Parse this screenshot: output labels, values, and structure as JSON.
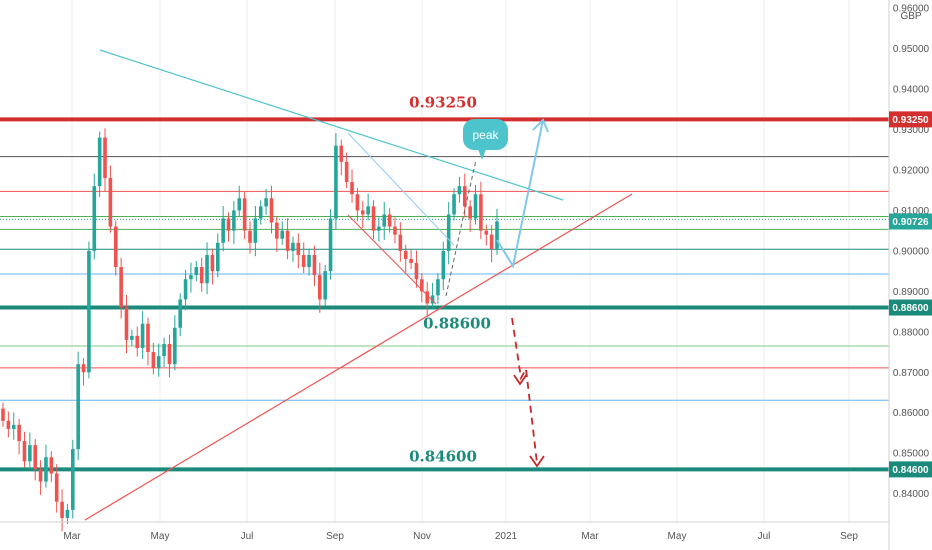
{
  "chart_data": {
    "type": "candlestick",
    "currency": "GBP",
    "y_range": [
      0.833,
      0.962
    ],
    "y_ticks": [
      "0.84000",
      "0.85000",
      "0.86000",
      "0.87000",
      "0.88000",
      "0.89000",
      "0.90000",
      "0.91000",
      "0.92000",
      "0.93000",
      "0.94000",
      "0.95000",
      "0.96000"
    ],
    "x_ticks": [
      "Mar",
      "May",
      "Jul",
      "Sep",
      "Nov",
      "2021",
      "Mar",
      "May",
      "Jul",
      "Sep"
    ],
    "price_tags": [
      {
        "value": 0.9325,
        "label": "0.93250",
        "color": "#d32f2f"
      },
      {
        "value": 0.90726,
        "label": "0.90726",
        "color": "#26a69a"
      },
      {
        "value": 0.886,
        "label": "0.88600",
        "color": "#1b8a7a"
      },
      {
        "value": 0.846,
        "label": "0.84600",
        "color": "#1b8a7a"
      }
    ],
    "level_annotations": [
      {
        "value": 0.9325,
        "text": "0.93250",
        "color": "#d32f2f"
      },
      {
        "value": 0.886,
        "text": "0.88600",
        "color": "#1b8a7a"
      },
      {
        "value": 0.846,
        "text": "0.84600",
        "color": "#1b8a7a"
      }
    ],
    "callout": "peak",
    "horizontal_levels": [
      {
        "value": 0.9325,
        "color": "#d32f2f",
        "width": 4
      },
      {
        "value": 0.9233,
        "color": "#555555",
        "width": 1
      },
      {
        "value": 0.9147,
        "color": "#ef5350",
        "width": 1
      },
      {
        "value": 0.9085,
        "color": "#4caf50",
        "width": 1
      },
      {
        "value": 0.9078,
        "color": "#26a69a",
        "width": 1,
        "dotted": true
      },
      {
        "value": 0.9053,
        "color": "#4caf50",
        "width": 1
      },
      {
        "value": 0.9004,
        "color": "#1b8a7a",
        "width": 1
      },
      {
        "value": 0.8943,
        "color": "#64b5f6",
        "width": 1
      },
      {
        "value": 0.886,
        "color": "#1b8a7a",
        "width": 4
      },
      {
        "value": 0.8765,
        "color": "#81c784",
        "width": 1
      },
      {
        "value": 0.8711,
        "color": "#ef5350",
        "width": 1
      },
      {
        "value": 0.8631,
        "color": "#64b5f6",
        "width": 1
      },
      {
        "value": 0.846,
        "color": "#1b8a7a",
        "width": 4
      }
    ],
    "candles_close": [
      0.858,
      0.856,
      0.857,
      0.853,
      0.848,
      0.852,
      0.846,
      0.843,
      0.849,
      0.845,
      0.838,
      0.834,
      0.836,
      0.851,
      0.872,
      0.87,
      0.9,
      0.916,
      0.928,
      0.918,
      0.906,
      0.896,
      0.886,
      0.878,
      0.879,
      0.876,
      0.882,
      0.875,
      0.871,
      0.874,
      0.877,
      0.872,
      0.881,
      0.888,
      0.893,
      0.894,
      0.896,
      0.892,
      0.899,
      0.895,
      0.902,
      0.908,
      0.905,
      0.91,
      0.913,
      0.905,
      0.902,
      0.908,
      0.911,
      0.913,
      0.907,
      0.903,
      0.905,
      0.9,
      0.902,
      0.899,
      0.896,
      0.899,
      0.894,
      0.888,
      0.895,
      0.908,
      0.926,
      0.922,
      0.917,
      0.914,
      0.91,
      0.909,
      0.911,
      0.905,
      0.906,
      0.909,
      0.906,
      0.904,
      0.9,
      0.898,
      0.897,
      0.893,
      0.89,
      0.887,
      0.889,
      0.893,
      0.9,
      0.909,
      0.914,
      0.916,
      0.911,
      0.908,
      0.914,
      0.905,
      0.904,
      0.9005,
      0.9073
    ]
  }
}
